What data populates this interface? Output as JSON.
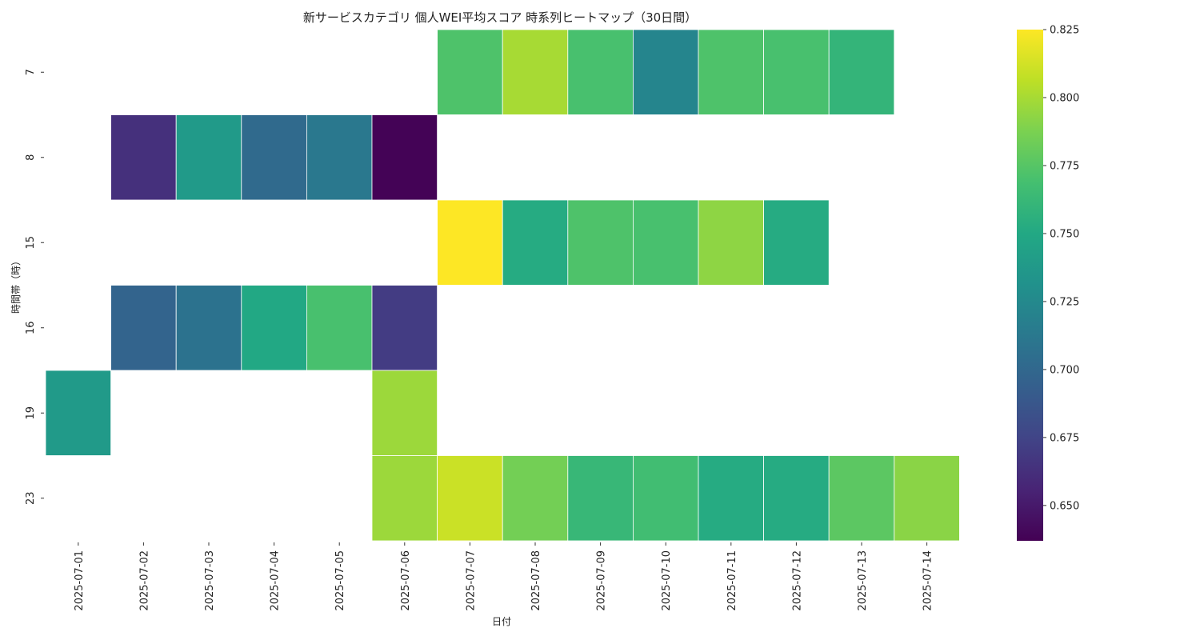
{
  "chart_data": {
    "type": "heatmap",
    "title": "新サービスカテゴリ 個人WEI平均スコア 時系列ヒートマップ（30日間）",
    "xlabel": "日付",
    "ylabel": "時間帯（時）",
    "x": [
      "2025-07-01",
      "2025-07-02",
      "2025-07-03",
      "2025-07-04",
      "2025-07-05",
      "2025-07-06",
      "2025-07-07",
      "2025-07-08",
      "2025-07-09",
      "2025-07-10",
      "2025-07-11",
      "2025-07-12",
      "2025-07-13",
      "2025-07-14"
    ],
    "y": [
      "7",
      "8",
      "15",
      "16",
      "19",
      "23"
    ],
    "values": [
      [
        null,
        null,
        null,
        null,
        null,
        null,
        0.772,
        0.8,
        0.77,
        0.722,
        0.772,
        0.77,
        0.76,
        null
      ],
      [
        null,
        0.663,
        0.738,
        0.702,
        0.712,
        0.638,
        null,
        null,
        null,
        null,
        null,
        null,
        null,
        null
      ],
      [
        null,
        null,
        null,
        null,
        null,
        null,
        0.825,
        0.752,
        0.772,
        0.77,
        0.793,
        0.752,
        null,
        null
      ],
      [
        null,
        0.697,
        0.708,
        0.75,
        0.77,
        0.67,
        null,
        null,
        null,
        null,
        null,
        null,
        null,
        null
      ],
      [
        0.738,
        null,
        null,
        null,
        null,
        0.797,
        null,
        null,
        null,
        null,
        null,
        null,
        null,
        null
      ],
      [
        null,
        null,
        null,
        null,
        null,
        0.797,
        0.81,
        0.785,
        0.762,
        0.767,
        0.752,
        0.752,
        0.777,
        0.792
      ]
    ],
    "colormap": "viridis",
    "colorbar": {
      "vmin": 0.637,
      "vmax": 0.825,
      "ticks": [
        0.65,
        0.675,
        0.7,
        0.725,
        0.75,
        0.775,
        0.8,
        0.825
      ],
      "tick_labels": [
        "0.650",
        "0.675",
        "0.700",
        "0.725",
        "0.750",
        "0.775",
        "0.800",
        "0.825"
      ],
      "placement": "right"
    }
  }
}
